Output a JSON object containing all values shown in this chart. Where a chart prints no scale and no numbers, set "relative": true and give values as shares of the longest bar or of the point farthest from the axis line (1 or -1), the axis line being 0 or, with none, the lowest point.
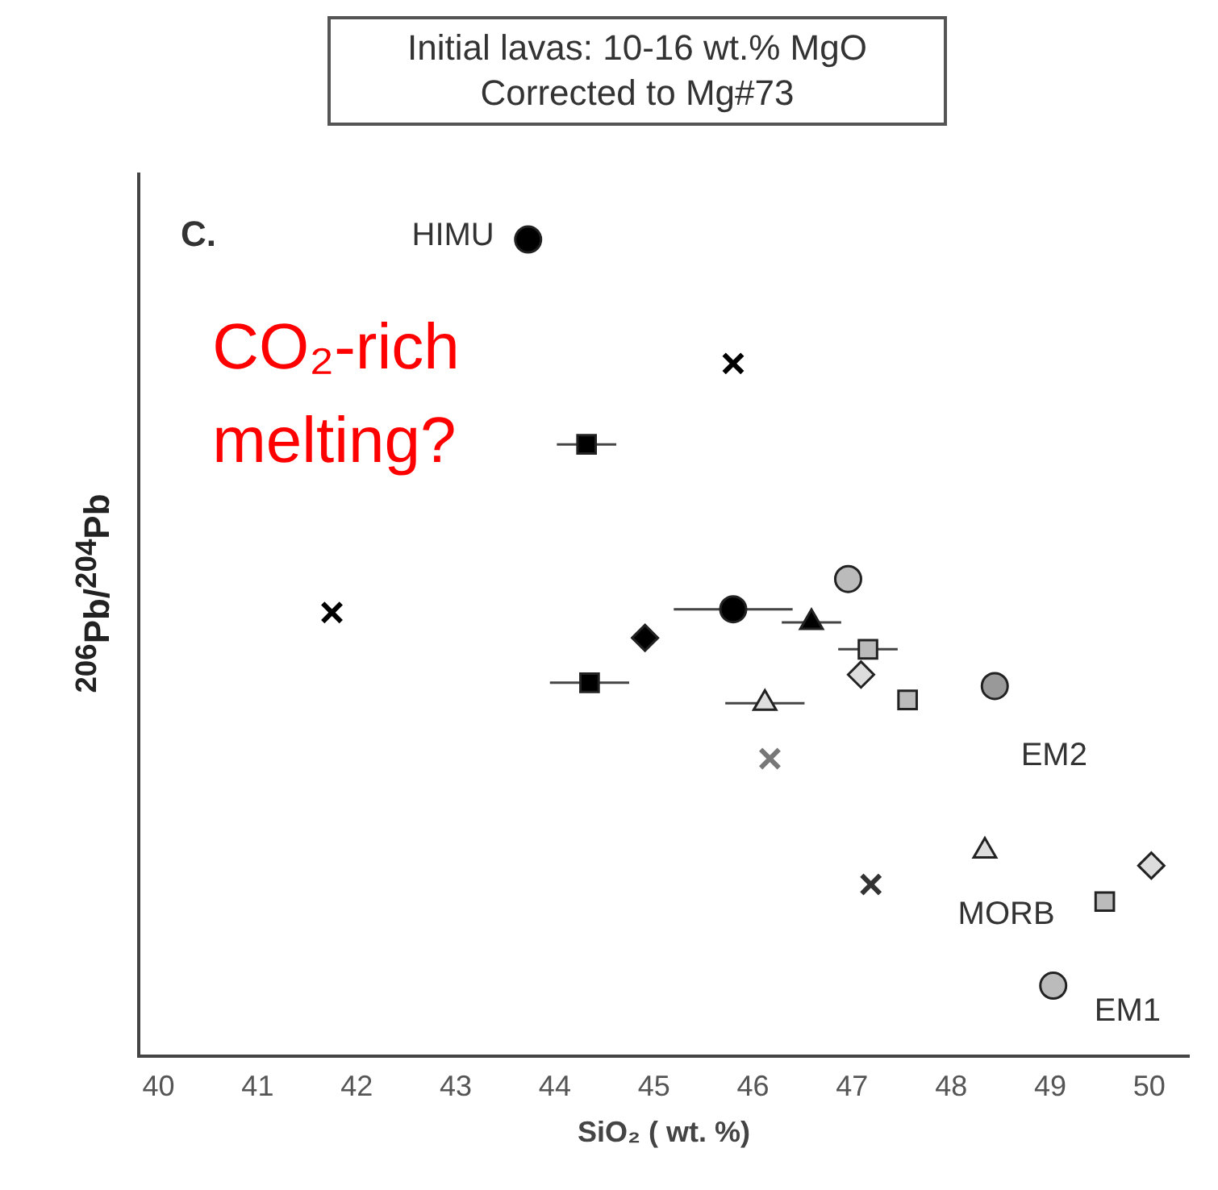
{
  "chart_data": {
    "type": "scatter",
    "title": "Initial lavas: 10-16 wt.% MgO\nCorrected to Mg#73",
    "xlabel": "SiO₂ ( wt. %)",
    "ylabel": "$^{206}$Pb/$^{204}$Pb",
    "relative": true,
    "xlim": [
      39.8,
      50.4
    ],
    "xticks": [
      40,
      41,
      42,
      43,
      44,
      45,
      46,
      47,
      48,
      49,
      50
    ],
    "grid": false,
    "legend": false,
    "series": [
      {
        "color": "#000000",
        "marker": "circle",
        "x": [
          43.73,
          45.8
        ],
        "values": [
          1,
          0.547
        ],
        "xerrors": [
          null,
          0.6
        ]
      },
      {
        "color": "#999999",
        "marker": "circle",
        "x": [
          48.44
        ],
        "values": [
          0.453
        ]
      },
      {
        "color": "#000000",
        "marker": "cross",
        "x": [
          45.8,
          41.75
        ],
        "values": [
          0.848,
          0.543
        ]
      },
      {
        "color": "#000000",
        "marker": "square",
        "x": [
          44.32,
          44.35
        ],
        "values": [
          0.749,
          0.457
        ],
        "xerrors": [
          0.3,
          0.4
        ]
      },
      {
        "color": "#000000",
        "marker": "diamond",
        "x": [
          44.91
        ],
        "values": [
          0.512
        ]
      },
      {
        "color": "#000000",
        "marker": "triangle",
        "x": [
          46.59
        ],
        "values": [
          0.531
        ],
        "xerrors": [
          0.3
        ]
      },
      {
        "color": "#bbbbbb",
        "marker": "circle",
        "x": [
          46.96,
          49.03
        ],
        "values": [
          0.584,
          0.086
        ]
      },
      {
        "color": "#bbbbbb",
        "marker": "square",
        "x": [
          47.16,
          47.56,
          49.55
        ],
        "values": [
          0.498,
          0.436,
          0.189
        ],
        "xerrors": [
          0.3,
          null,
          null
        ]
      },
      {
        "color": "#dddddd",
        "marker": "diamond",
        "x": [
          47.09,
          50.02
        ],
        "values": [
          0.467,
          0.233
        ]
      },
      {
        "color": "#dddddd",
        "marker": "triangle",
        "x": [
          46.12,
          48.34
        ],
        "values": [
          0.432,
          0.251
        ],
        "xerrors": [
          0.4,
          null
        ]
      },
      {
        "color": "#777777",
        "marker": "cross",
        "x": [
          46.17
        ],
        "values": [
          0.364
        ]
      },
      {
        "color": "#333333",
        "marker": "cross",
        "x": [
          47.19
        ],
        "values": [
          0.21
        ]
      }
    ],
    "annotations": [
      "C.",
      "CO₂-rich\nmelting?",
      "HIMU",
      "EM2",
      "MORB",
      "EM1"
    ]
  }
}
